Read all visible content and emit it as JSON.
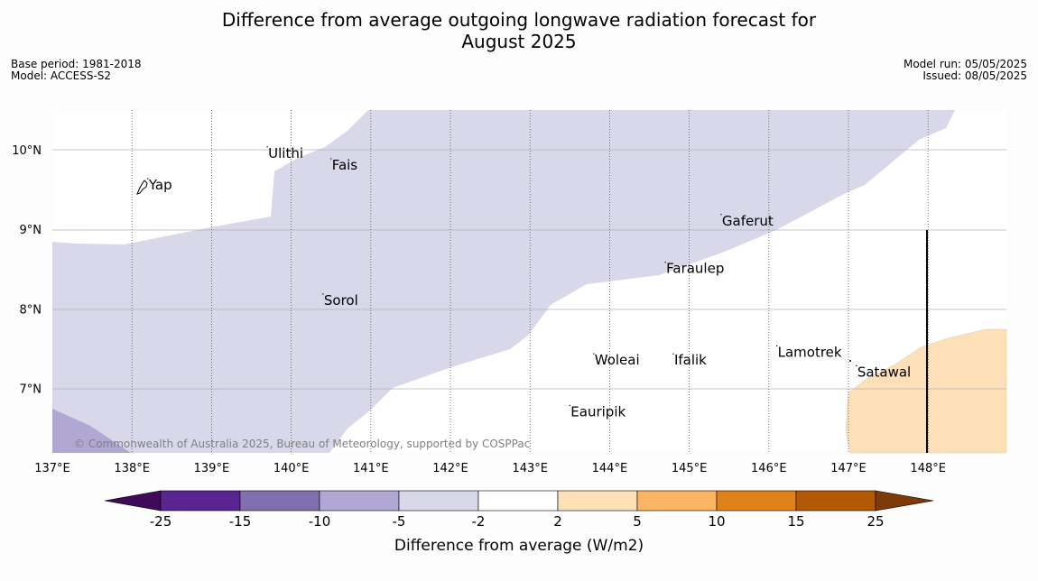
{
  "title": {
    "line1": "Difference from average outgoing longwave radiation forecast for",
    "line2": "August 2025"
  },
  "meta": {
    "base_period": "Base period: 1981-2018",
    "model": "Model: ACCESS-S2",
    "model_run": "Model run: 05/05/2025",
    "issued": "Issued: 08/05/2025"
  },
  "map": {
    "lon_ticks": [
      "137°E",
      "138°E",
      "139°E",
      "140°E",
      "141°E",
      "142°E",
      "143°E",
      "144°E",
      "145°E",
      "146°E",
      "147°E",
      "148°E"
    ],
    "lat_ticks": [
      "10°N",
      "9°N",
      "8°N",
      "7°N"
    ],
    "places": [
      {
        "name": "Yap",
        "lon": 138.2,
        "lat": 9.5
      },
      {
        "name": "Ulithi",
        "lon": 139.7,
        "lat": 9.9
      },
      {
        "name": "Fais",
        "lon": 140.5,
        "lat": 9.75
      },
      {
        "name": "Gaferut",
        "lon": 145.4,
        "lat": 9.05
      },
      {
        "name": "Faraulep",
        "lon": 144.7,
        "lat": 8.45
      },
      {
        "name": "Sorol",
        "lon": 140.4,
        "lat": 8.05
      },
      {
        "name": "Woleai",
        "lon": 143.8,
        "lat": 7.3
      },
      {
        "name": "Ifalik",
        "lon": 144.8,
        "lat": 7.3
      },
      {
        "name": "Lamotrek",
        "lon": 146.1,
        "lat": 7.4
      },
      {
        "name": "Satawal",
        "lon": 147.1,
        "lat": 7.15
      },
      {
        "name": "Eauripik",
        "lon": 143.5,
        "lat": 6.65
      }
    ],
    "copyright": "© Commonwealth of Australia 2025, Bureau of Meteorology, supported by COSPPac"
  },
  "colorbar": {
    "labels": [
      "-25",
      "-15",
      "-10",
      "-5",
      "-2",
      "2",
      "5",
      "10",
      "15",
      "25"
    ],
    "colors": [
      "#3f0a59",
      "#5a2590",
      "#8070ae",
      "#b0a8d2",
      "#d8d8ea",
      "#ffffff",
      "#fde0b7",
      "#fbb462",
      "#e0821a",
      "#b35805",
      "#7f3b07"
    ],
    "title": "Difference from average (W/m2)"
  }
}
